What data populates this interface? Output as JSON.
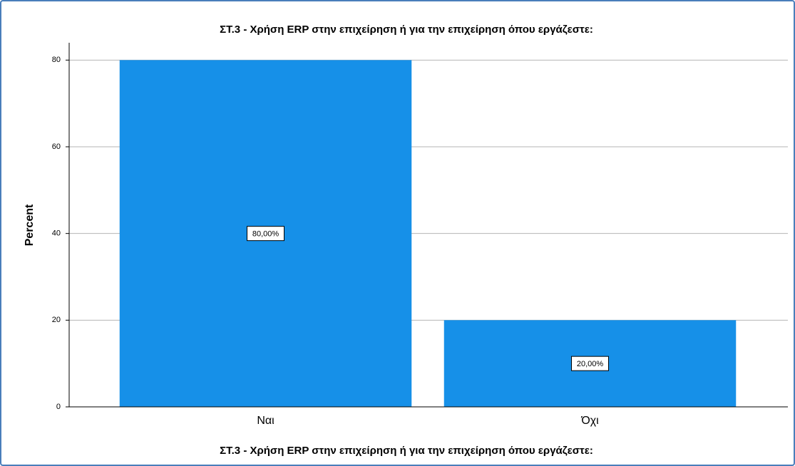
{
  "chart_data": {
    "type": "bar",
    "title": "ΣΤ.3 - Χρήση ERP στην επιχείρηση ή για την επιχείρηση όπου εργάζεστε:",
    "x_label": "ΣΤ.3 - Χρήση ERP στην επιχείρηση ή για την επιχείρηση όπου εργάζεστε:",
    "y_label": "Percent",
    "categories": [
      "Ναι",
      "Όχι"
    ],
    "values": [
      80,
      20
    ],
    "value_labels": [
      "80,00%",
      "20,00%"
    ],
    "color": "#1690e8",
    "ylim": [
      0,
      84
    ],
    "yticks": [
      0,
      20,
      40,
      60,
      80
    ],
    "grid": true
  }
}
